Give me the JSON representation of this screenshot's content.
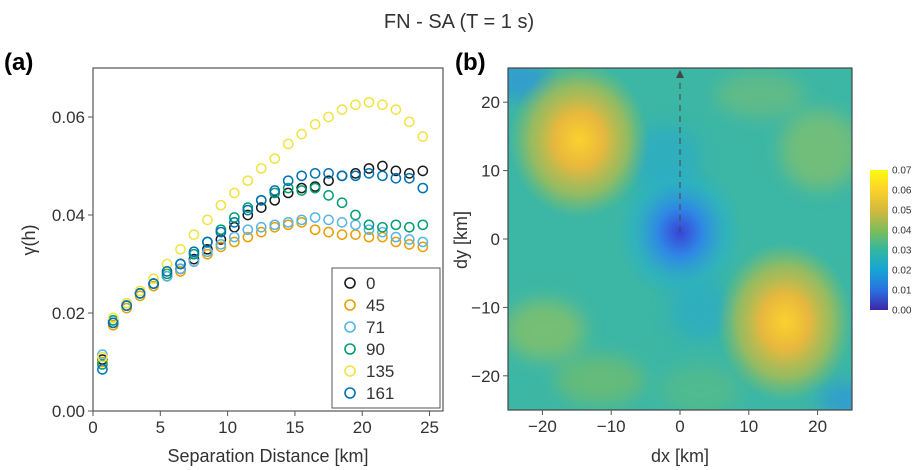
{
  "title": "FN - SA (T = 1 s)",
  "chart_data": [
    {
      "panel_label": "(a)",
      "type": "scatter",
      "xlabel": "Separation Distance [km]",
      "ylabel": "γ(h)",
      "xlim": [
        0,
        26
      ],
      "ylim": [
        0,
        0.07
      ],
      "xticks": [
        "0",
        "5",
        "10",
        "15",
        "20",
        "25"
      ],
      "yticks": [
        "0.00",
        "0.02",
        "0.04",
        "0.06"
      ],
      "marker": "open-circle",
      "legend_position": "bottom-right",
      "x": [
        0.7,
        1.5,
        2.5,
        3.5,
        4.5,
        5.5,
        6.5,
        7.5,
        8.5,
        9.5,
        10.5,
        11.5,
        12.5,
        13.5,
        14.5,
        15.5,
        16.5,
        17.5,
        18.5,
        19.5,
        20.5,
        21.5,
        22.5,
        23.5,
        24.5
      ],
      "series": [
        {
          "name": "0",
          "color": "#1a1a1a",
          "values": [
            0.0105,
            0.018,
            0.0215,
            0.024,
            0.026,
            0.0275,
            0.029,
            0.031,
            0.033,
            0.035,
            0.0375,
            0.04,
            0.0415,
            0.043,
            0.0445,
            0.0455,
            0.0458,
            0.047,
            0.048,
            0.0485,
            0.0495,
            0.05,
            0.049,
            0.0485,
            0.049
          ]
        },
        {
          "name": "45",
          "color": "#e69f00",
          "values": [
            0.01,
            0.0175,
            0.021,
            0.0235,
            0.0255,
            0.0275,
            0.0285,
            0.0305,
            0.032,
            0.0335,
            0.0345,
            0.0355,
            0.0365,
            0.0375,
            0.038,
            0.0385,
            0.037,
            0.0365,
            0.036,
            0.036,
            0.0355,
            0.0355,
            0.0345,
            0.034,
            0.0335
          ]
        },
        {
          "name": "71",
          "color": "#56b4e9",
          "values": [
            0.0115,
            0.0185,
            0.022,
            0.024,
            0.026,
            0.0275,
            0.029,
            0.0305,
            0.0325,
            0.034,
            0.0355,
            0.037,
            0.0375,
            0.038,
            0.0385,
            0.039,
            0.0395,
            0.039,
            0.0385,
            0.038,
            0.037,
            0.0365,
            0.0355,
            0.035,
            0.0345
          ]
        },
        {
          "name": "90",
          "color": "#009e73",
          "values": [
            0.0095,
            0.0185,
            0.0215,
            0.024,
            0.026,
            0.028,
            0.03,
            0.032,
            0.0345,
            0.037,
            0.0395,
            0.0415,
            0.043,
            0.0445,
            0.0455,
            0.045,
            0.0455,
            0.044,
            0.0425,
            0.04,
            0.038,
            0.0375,
            0.038,
            0.0375,
            0.038
          ]
        },
        {
          "name": "135",
          "color": "#f0e442",
          "values": [
            0.011,
            0.019,
            0.022,
            0.0245,
            0.027,
            0.03,
            0.033,
            0.036,
            0.039,
            0.042,
            0.0445,
            0.047,
            0.0495,
            0.0515,
            0.0545,
            0.0565,
            0.0585,
            0.06,
            0.0615,
            0.0625,
            0.063,
            0.0625,
            0.0615,
            0.059,
            0.056
          ]
        },
        {
          "name": "161",
          "color": "#0072b2",
          "values": [
            0.0085,
            0.018,
            0.0215,
            0.024,
            0.026,
            0.0285,
            0.03,
            0.0325,
            0.0345,
            0.0365,
            0.0385,
            0.041,
            0.043,
            0.045,
            0.047,
            0.048,
            0.0485,
            0.0485,
            0.048,
            0.048,
            0.0485,
            0.048,
            0.0475,
            0.0475,
            0.0455
          ]
        }
      ]
    },
    {
      "panel_label": "(b)",
      "type": "heatmap",
      "xlabel": "dx [km]",
      "ylabel": "dy [km]",
      "xlim": [
        -25,
        25
      ],
      "ylim": [
        -25,
        25
      ],
      "xticks": [
        "−20",
        "−10",
        "0",
        "10",
        "20"
      ],
      "yticks": [
        "−20",
        "−10",
        "0",
        "10",
        "20"
      ],
      "colorbar_range": [
        0,
        0.07
      ],
      "colorbar_ticks": [
        "0.07",
        "0.06",
        "0.05",
        "0.04",
        "0.03",
        "0.02",
        "0.01",
        "0.00"
      ],
      "colormap_colors": [
        "#3e26a8",
        "#2a6fe0",
        "#17a6d4",
        "#33b7a0",
        "#7fbd5a",
        "#d2b83e",
        "#fdd22b",
        "#f9fb0e"
      ],
      "arrow_direction_deg": 0,
      "features": [
        {
          "dx": 0,
          "dy": 0,
          "value": 0.0
        },
        {
          "dx": -15,
          "dy": 13,
          "value": 0.065
        },
        {
          "dx": 15,
          "dy": -15,
          "value": 0.065
        }
      ]
    }
  ]
}
